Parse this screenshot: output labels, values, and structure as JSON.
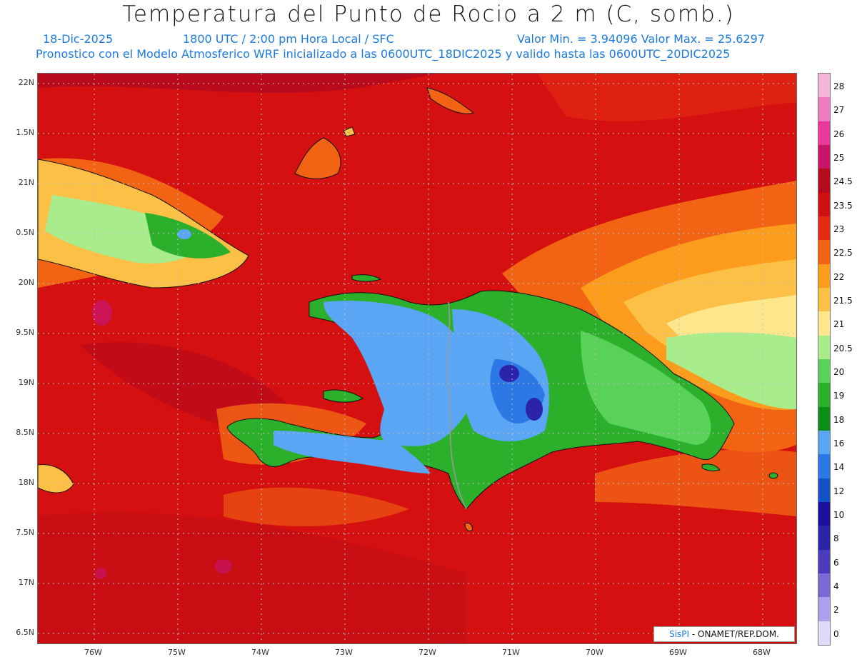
{
  "header": {
    "title": "Temperatura del Punto de Rocio a 2 m (C, somb.)",
    "date": "18-Dic-2025",
    "time": "1800 UTC / 2:00 pm Hora Local / SFC",
    "min_max": "Valor Min. = 3.94096  Valor Max. = 25.6297",
    "model_line": "Pronostico con el Modelo Atmosferico WRF inicializado a las 0600UTC_18DIC2025 y valido hasta las  0600UTC_20DIC2025"
  },
  "axes": {
    "lat_labels": [
      "22N",
      "1.5N",
      "21N",
      "0.5N",
      "20N",
      "9.5N",
      "19N",
      "8.5N",
      "18N",
      "7.5N",
      "17N",
      "6.5N"
    ],
    "lon_labels": [
      "76W",
      "75W",
      "74W",
      "73W",
      "72W",
      "71W",
      "70W",
      "69W",
      "68W"
    ]
  },
  "colorbar": {
    "labels": [
      "28",
      "27",
      "26",
      "25",
      "24.5",
      "23.5",
      "23",
      "22.5",
      "22",
      "21.5",
      "21",
      "20.5",
      "20",
      "19",
      "18",
      "16",
      "14",
      "12",
      "10",
      "8",
      "6",
      "4",
      "2",
      "0"
    ],
    "colors": [
      "#f4b6d8",
      "#f07ac0",
      "#e8389c",
      "#c81466",
      "#b40a1e",
      "#d01010",
      "#e42a14",
      "#f26414",
      "#fb9c1c",
      "#fcc046",
      "#fde68c",
      "#a8ec8c",
      "#5ad25a",
      "#2cb02c",
      "#0e8c18",
      "#5aa6f4",
      "#2c78e4",
      "#1452c8",
      "#1a109c",
      "#2c24a8",
      "#4a3cbc",
      "#7a6ad4",
      "#aea0ec",
      "#dcdcfa"
    ]
  },
  "credit": {
    "brand": "SisPI",
    "org": " - ONAMET/REP.DOM."
  }
}
